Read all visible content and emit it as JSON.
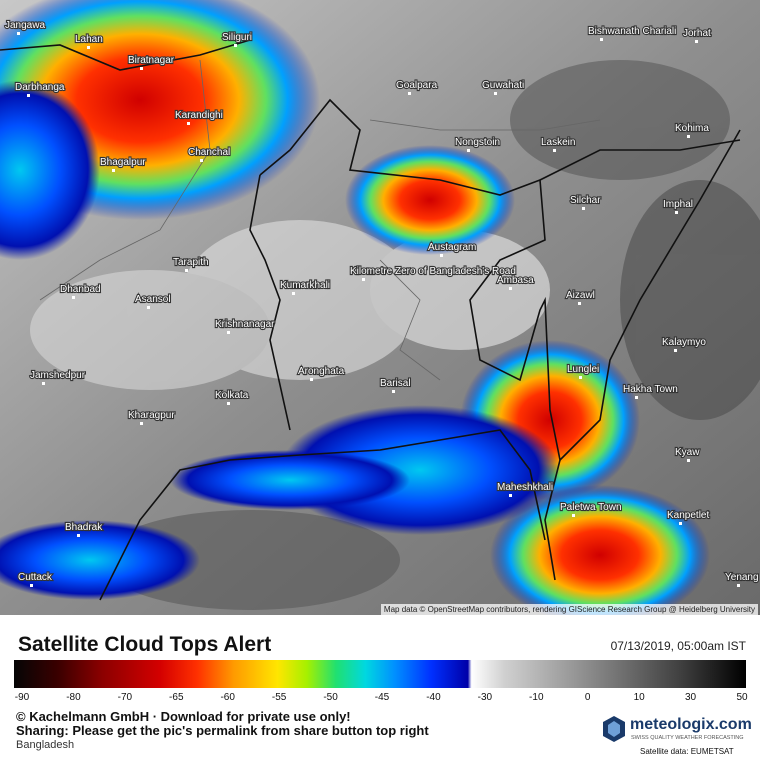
{
  "map": {
    "cities": [
      "Jangawa",
      "Lahan",
      "Siliguri",
      "Biratnagar",
      "Darbhanga",
      "Goalpara",
      "Guwahati",
      "Bishwanath Chariali",
      "Jorhat",
      "Karandighi",
      "Nongstoin",
      "Laskein",
      "Kohima",
      "Bhagalpur",
      "Chanchal",
      "Silchar",
      "Imphal",
      "Tarapith",
      "Austagram",
      "Ambasa",
      "Dhanbad",
      "Asansol",
      "Kumarkhali",
      "Aizawl",
      "Krishnanagar",
      "Kalaymyo",
      "Jamshedpur",
      "Aronghata",
      "Barisal",
      "Lunglei",
      "Hakha Town",
      "Kolkata",
      "Kharagpur",
      "Kyaw",
      "Maheshkhali",
      "Paletwa Town",
      "Kanpetlet",
      "Bhadrak",
      "Cuttack",
      "Yenang",
      "Kilometre Zero of Bangladesh's Road"
    ],
    "attribution": "Map data © OpenStreetMap contributors, rendering GIScience Research Group @ Heidelberg University"
  },
  "footer": {
    "title": "Satellite Cloud Tops Alert",
    "date": "07/13/2019, 05:00am IST",
    "scale_ticks": [
      "-90",
      "-80",
      "-70",
      "-65",
      "-60",
      "-55",
      "-50",
      "-45",
      "-40",
      "-30",
      "-10",
      "0",
      "10",
      "30",
      "50"
    ],
    "copyright": "© Kachelmann GmbH · Download for private use only!",
    "sharing": "Sharing: Please get the pic's permalink from share button top right",
    "region": "Bangladesh",
    "logo": "meteologix.com",
    "logo_tagline": "SWISS QUALITY WEATHER FORECASTING",
    "satellite": "Satellite data: EUMETSAT"
  }
}
